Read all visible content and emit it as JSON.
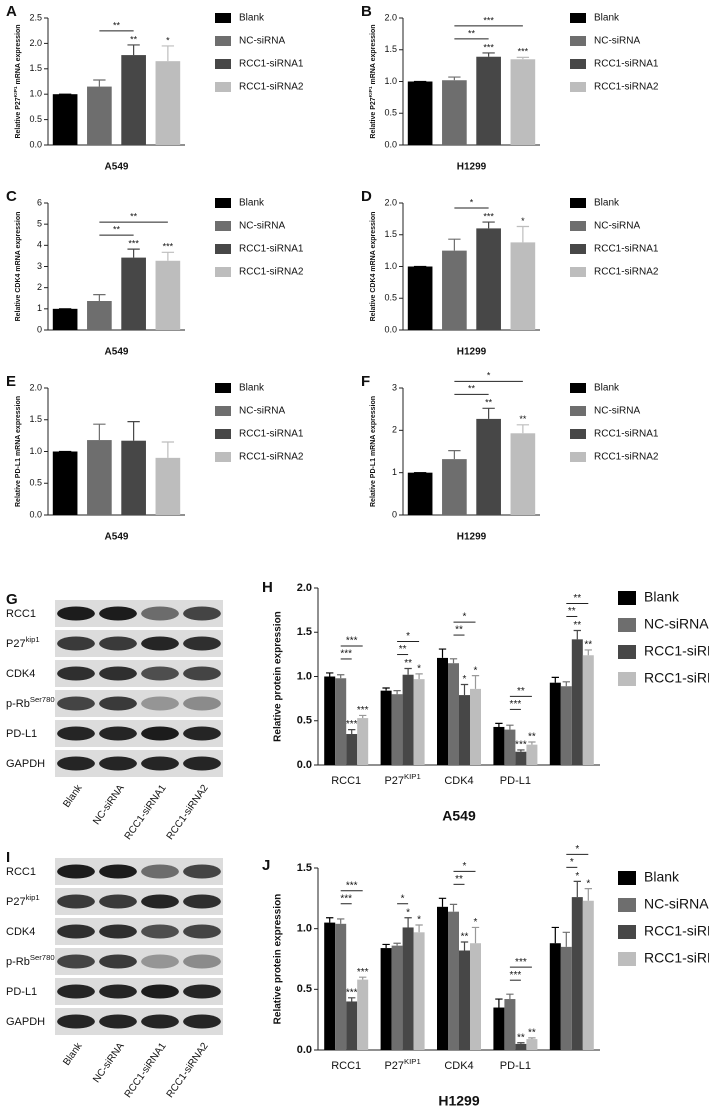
{
  "chart_data": [
    {
      "type": "bar",
      "panel": "A",
      "ylabel": [
        "Relative P27",
        "KIP1",
        " mRNA expression"
      ],
      "xlabel": "A549",
      "categories": [
        "Blank",
        "NC-siRNA",
        "RCC1-siRNA1",
        "RCC1-siRNA2"
      ],
      "colors": [
        "#000000",
        "#6e6e6e",
        "#474747",
        "#bdbdbd"
      ],
      "values": [
        1.0,
        1.15,
        1.77,
        1.65
      ],
      "errors": [
        0,
        0.13,
        0.2,
        0.3
      ],
      "stars": [
        null,
        null,
        "**",
        "*"
      ],
      "brackets": [
        {
          "bars": [
            1,
            2
          ],
          "label": "**"
        }
      ],
      "ylim": [
        0,
        2.5
      ],
      "yticks": [
        {
          "value": 0,
          "label": "0.0"
        },
        0.5,
        {
          "value": 1,
          "label": "1.0"
        },
        1.5,
        {
          "value": 2,
          "label": "2.0"
        },
        2.5
      ]
    },
    {
      "type": "bar",
      "panel": "B",
      "ylabel": [
        "Relative P27",
        "KIP1",
        " mRNA expression"
      ],
      "xlabel": "H1299",
      "categories": [
        "Blank",
        "NC-siRNA",
        "RCC1-siRNA1",
        "RCC1-siRNA2"
      ],
      "colors": [
        "#000000",
        "#6e6e6e",
        "#474747",
        "#bdbdbd"
      ],
      "values": [
        1.0,
        1.02,
        1.39,
        1.35
      ],
      "errors": [
        0,
        0.05,
        0.06,
        0.03
      ],
      "stars": [
        null,
        null,
        "***",
        "***"
      ],
      "brackets": [
        {
          "bars": [
            1,
            2
          ],
          "label": "**"
        },
        {
          "bars": [
            1,
            3
          ],
          "label": "***"
        }
      ],
      "ylim": [
        0,
        2
      ],
      "yticks": [
        {
          "value": 0,
          "label": "0.0"
        },
        0.5,
        {
          "value": 1,
          "label": "1.0"
        },
        1.5,
        {
          "value": 2,
          "label": "2.0"
        }
      ]
    },
    {
      "type": "bar",
      "panel": "C",
      "ylabel": "Relative CDK4 mRNA expression",
      "xlabel": "A549",
      "categories": [
        "Blank",
        "NC-siRNA",
        "RCC1-siRNA1",
        "RCC1-siRNA2"
      ],
      "colors": [
        "#000000",
        "#6e6e6e",
        "#474747",
        "#bdbdbd"
      ],
      "values": [
        1.0,
        1.37,
        3.42,
        3.27
      ],
      "errors": [
        0,
        0.3,
        0.4,
        0.4
      ],
      "stars": [
        null,
        null,
        "***",
        "***"
      ],
      "brackets": [
        {
          "bars": [
            1,
            2
          ],
          "label": "**"
        },
        {
          "bars": [
            1,
            3
          ],
          "label": "**"
        }
      ],
      "ylim": [
        0,
        6
      ],
      "yticks": [
        0,
        1,
        2,
        3,
        4,
        5,
        6
      ]
    },
    {
      "type": "bar",
      "panel": "D",
      "ylabel": "Relative CDK4 mRNA expression",
      "xlabel": "H1299",
      "categories": [
        "Blank",
        "NC-siRNA",
        "RCC1-siRNA1",
        "RCC1-siRNA2"
      ],
      "colors": [
        "#000000",
        "#6e6e6e",
        "#474747",
        "#bdbdbd"
      ],
      "values": [
        1.0,
        1.25,
        1.6,
        1.38
      ],
      "errors": [
        0,
        0.18,
        0.1,
        0.25
      ],
      "stars": [
        null,
        null,
        "***",
        "*"
      ],
      "brackets": [
        {
          "bars": [
            1,
            2
          ],
          "label": "*"
        }
      ],
      "ylim": [
        0,
        2
      ],
      "yticks": [
        {
          "value": 0,
          "label": "0.0"
        },
        0.5,
        {
          "value": 1,
          "label": "1.0"
        },
        1.5,
        {
          "value": 2,
          "label": "2.0"
        }
      ]
    },
    {
      "type": "bar",
      "panel": "E",
      "ylabel": "Relative PD-L1 mRNA expression",
      "xlabel": "A549",
      "categories": [
        "Blank",
        "NC-siRNA",
        "RCC1-siRNA1",
        "RCC1-siRNA2"
      ],
      "colors": [
        "#000000",
        "#6e6e6e",
        "#474747",
        "#bdbdbd"
      ],
      "values": [
        1.0,
        1.18,
        1.17,
        0.9
      ],
      "errors": [
        0,
        0.25,
        0.3,
        0.25
      ],
      "stars": [
        null,
        null,
        null,
        null
      ],
      "brackets": [],
      "ylim": [
        0,
        2
      ],
      "yticks": [
        {
          "value": 0,
          "label": "0.0"
        },
        0.5,
        {
          "value": 1,
          "label": "1.0"
        },
        1.5,
        {
          "value": 2,
          "label": "2.0"
        }
      ]
    },
    {
      "type": "bar",
      "panel": "F",
      "ylabel": "Relative PD-L1 mRNA expression",
      "xlabel": "H1299",
      "categories": [
        "Blank",
        "NC-siRNA",
        "RCC1-siRNA1",
        "RCC1-siRNA2"
      ],
      "colors": [
        "#000000",
        "#6e6e6e",
        "#474747",
        "#bdbdbd"
      ],
      "values": [
        1.0,
        1.32,
        2.27,
        1.93
      ],
      "errors": [
        0,
        0.2,
        0.25,
        0.2
      ],
      "stars": [
        null,
        null,
        "**",
        "**"
      ],
      "brackets": [
        {
          "bars": [
            1,
            2
          ],
          "label": "**"
        },
        {
          "bars": [
            1,
            3
          ],
          "label": "*"
        }
      ],
      "ylim": [
        0,
        3
      ],
      "yticks": [
        0,
        1,
        2,
        3
      ]
    },
    {
      "type": "grouped_bar",
      "panel": "H",
      "ylabel": "Relative  protein expression",
      "xlabel": "A549",
      "categories": [
        "RCC1",
        [
          "P27",
          "KIP1"
        ],
        "CDK4",
        "PD-L1",
        null
      ],
      "series": [
        {
          "name": "Blank",
          "color": "#000000",
          "values": [
            1.0,
            0.84,
            1.21,
            0.43,
            0.93
          ],
          "errors": [
            0.04,
            0.03,
            0.1,
            0.04,
            0.06
          ],
          "stars": [
            null,
            null,
            null,
            null,
            null
          ]
        },
        {
          "name": "NC-siRNA",
          "color": "#6e6e6e",
          "values": [
            0.98,
            0.8,
            1.15,
            0.4,
            0.89
          ],
          "errors": [
            0.04,
            0.04,
            0.05,
            0.05,
            0.05
          ],
          "stars": [
            null,
            null,
            null,
            null,
            null
          ]
        },
        {
          "name": "RCC1-siRNA1",
          "color": "#474747",
          "values": [
            0.35,
            1.02,
            0.79,
            0.15,
            1.42
          ],
          "errors": [
            0.05,
            0.07,
            0.12,
            0.02,
            0.1
          ],
          "stars": [
            "***",
            "**",
            "*",
            "***",
            "**"
          ]
        },
        {
          "name": "RCC1-siRNA2",
          "color": "#bdbdbd",
          "values": [
            0.53,
            0.97,
            0.86,
            0.23,
            1.24
          ],
          "errors": [
            0.03,
            0.06,
            0.15,
            0.03,
            0.06
          ],
          "stars": [
            "***",
            "*",
            "*",
            "**",
            "**"
          ]
        }
      ],
      "brackets": [
        {
          "group": 0,
          "bars": [
            1,
            2
          ],
          "label": "***"
        },
        {
          "group": 0,
          "bars": [
            1,
            3
          ],
          "label": "***"
        },
        {
          "group": 1,
          "bars": [
            1,
            2
          ],
          "label": "**"
        },
        {
          "group": 1,
          "bars": [
            1,
            3
          ],
          "label": "*"
        },
        {
          "group": 2,
          "bars": [
            1,
            2
          ],
          "label": "**"
        },
        {
          "group": 2,
          "bars": [
            1,
            3
          ],
          "label": "*"
        },
        {
          "group": 3,
          "bars": [
            1,
            2
          ],
          "label": "***"
        },
        {
          "group": 3,
          "bars": [
            1,
            3
          ],
          "label": "**"
        },
        {
          "group": 4,
          "bars": [
            1,
            2
          ],
          "label": "**"
        },
        {
          "group": 4,
          "bars": [
            1,
            3
          ],
          "label": "**"
        }
      ],
      "ylim": [
        0,
        2
      ],
      "yticks": [
        {
          "value": 0,
          "label": "0.0"
        },
        0.5,
        {
          "value": 1,
          "label": "1.0"
        },
        1.5,
        {
          "value": 2,
          "label": "2.0"
        }
      ]
    },
    {
      "type": "grouped_bar",
      "panel": "J",
      "ylabel": "Relative  protein expression",
      "xlabel": "H1299",
      "categories": [
        "RCC1",
        [
          "P27",
          "KIP1"
        ],
        "CDK4",
        "PD-L1",
        null
      ],
      "series": [
        {
          "name": "Blank",
          "color": "#000000",
          "values": [
            1.05,
            0.84,
            1.18,
            0.35,
            0.88
          ],
          "errors": [
            0.04,
            0.03,
            0.07,
            0.07,
            0.13
          ],
          "stars": [
            null,
            null,
            null,
            null,
            null
          ]
        },
        {
          "name": "NC-siRNA",
          "color": "#6e6e6e",
          "values": [
            1.04,
            0.86,
            1.14,
            0.42,
            0.85
          ],
          "errors": [
            0.04,
            0.02,
            0.06,
            0.04,
            0.12
          ],
          "stars": [
            null,
            null,
            null,
            null,
            null
          ]
        },
        {
          "name": "RCC1-siRNA1",
          "color": "#474747",
          "values": [
            0.4,
            1.01,
            0.82,
            0.05,
            1.26
          ],
          "errors": [
            0.03,
            0.08,
            0.07,
            0.01,
            0.13
          ],
          "stars": [
            "***",
            "*",
            "**",
            "**",
            "*"
          ]
        },
        {
          "name": "RCC1-siRNA2",
          "color": "#bdbdbd",
          "values": [
            0.58,
            0.97,
            0.88,
            0.09,
            1.23
          ],
          "errors": [
            0.02,
            0.06,
            0.13,
            0.01,
            0.1
          ],
          "stars": [
            "***",
            "*",
            "*",
            "**",
            "*"
          ]
        }
      ],
      "brackets": [
        {
          "group": 0,
          "bars": [
            1,
            2
          ],
          "label": "***"
        },
        {
          "group": 0,
          "bars": [
            1,
            3
          ],
          "label": "***"
        },
        {
          "group": 1,
          "bars": [
            1,
            2
          ],
          "label": "*"
        },
        {
          "group": 2,
          "bars": [
            1,
            2
          ],
          "label": "**"
        },
        {
          "group": 2,
          "bars": [
            1,
            3
          ],
          "label": "*"
        },
        {
          "group": 3,
          "bars": [
            1,
            2
          ],
          "label": "***"
        },
        {
          "group": 3,
          "bars": [
            1,
            3
          ],
          "label": "***"
        },
        {
          "group": 4,
          "bars": [
            1,
            2
          ],
          "label": "*"
        },
        {
          "group": 4,
          "bars": [
            1,
            3
          ],
          "label": "*"
        }
      ],
      "ylim": [
        0,
        1.5
      ],
      "yticks": [
        {
          "value": 0,
          "label": "0.0"
        },
        0.5,
        {
          "value": 1,
          "label": "1.0"
        },
        1.5
      ]
    }
  ],
  "blots": [
    {
      "panel": "G",
      "rows": [
        "RCC1",
        [
          "P27",
          "kip1"
        ],
        "CDK4",
        [
          "p-Rb",
          "Ser780"
        ],
        "PD-L1",
        "GAPDH"
      ],
      "lanes": [
        "Blank",
        "NC-siRNA",
        "RCC1-siRNA1",
        "RCC1-siRNA2"
      ]
    },
    {
      "panel": "I",
      "rows": [
        "RCC1",
        [
          "P27",
          "kip1"
        ],
        "CDK4",
        [
          "p-Rb",
          "Ser780"
        ],
        "PD-L1",
        "GAPDH"
      ],
      "lanes": [
        "Blank",
        "NC-siRNA",
        "RCC1-siRNA1",
        "RCC1-siRNA2"
      ]
    }
  ]
}
